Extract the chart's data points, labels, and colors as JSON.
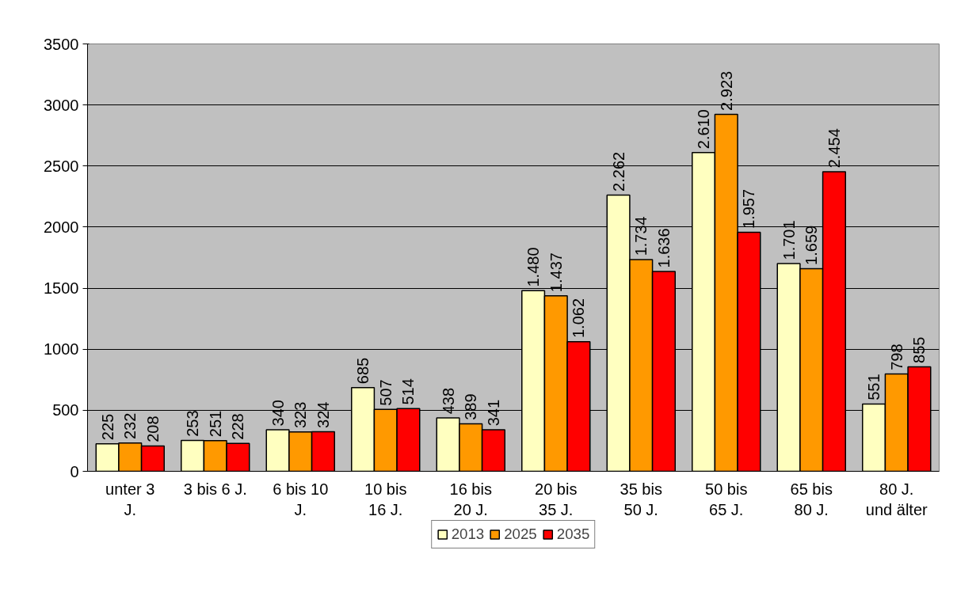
{
  "chart_data": {
    "type": "bar",
    "categories": [
      "unter 3\nJ.",
      "3 bis 6 J.",
      "6 bis 10\nJ.",
      "10 bis\n16 J.",
      "16 bis\n20 J.",
      "20 bis\n35 J.",
      "35 bis\n50 J.",
      "50 bis\n65 J.",
      "65 bis\n80 J.",
      "80 J.\nund älter"
    ],
    "series": [
      {
        "name": "2013",
        "color": "#ffffc0",
        "values": [
          225,
          253,
          340,
          685,
          438,
          1480,
          2262,
          2610,
          1701,
          551
        ],
        "value_labels": [
          "225",
          "253",
          "340",
          "685",
          "438",
          "1.480",
          "2.262",
          "2.610",
          "1.701",
          "551"
        ]
      },
      {
        "name": "2025",
        "color": "#ff9900",
        "values": [
          232,
          251,
          323,
          507,
          389,
          1437,
          1734,
          2923,
          1659,
          798
        ],
        "value_labels": [
          "232",
          "251",
          "323",
          "507",
          "389",
          "1.437",
          "1.734",
          "2.923",
          "1.659",
          "798"
        ]
      },
      {
        "name": "2035",
        "color": "#ff0000",
        "values": [
          208,
          228,
          324,
          514,
          341,
          1062,
          1636,
          1957,
          2454,
          855
        ],
        "value_labels": [
          "208",
          "228",
          "324",
          "514",
          "341",
          "1.062",
          "1.636",
          "1.957",
          "2.454",
          "855"
        ]
      }
    ],
    "ylim": [
      0,
      3500
    ],
    "yticks": [
      0,
      500,
      1000,
      1500,
      2000,
      2500,
      3000,
      3500
    ],
    "grid": "y",
    "legend": "bottom"
  }
}
